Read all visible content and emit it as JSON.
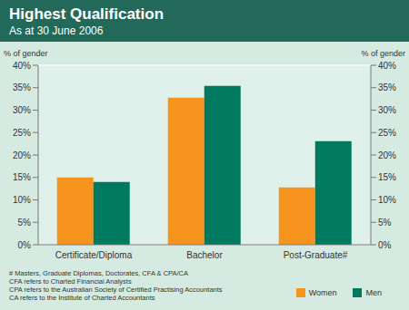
{
  "chart_data": {
    "type": "bar",
    "title": "Highest Qualification",
    "subtitle": "As at 30 June 2006",
    "y_label": "% of gender",
    "y2_label": "% of gender",
    "categories": [
      "Certificate/Diploma",
      "Bachelor",
      "Post-Graduate#"
    ],
    "series": [
      {
        "name": "Women",
        "color": "#f7941d",
        "values": [
          15,
          32.8,
          12.8
        ]
      },
      {
        "name": "Men",
        "color": "#007a5e",
        "values": [
          14,
          35.4,
          23.1
        ]
      }
    ],
    "ylim": [
      0,
      40
    ],
    "yticks": [
      {
        "value": 0,
        "label": "0%"
      },
      {
        "value": 5,
        "label": "5%"
      },
      {
        "value": 10,
        "label": "10%"
      },
      {
        "value": 15,
        "label": "15%"
      },
      {
        "value": 20,
        "label": "20%"
      },
      {
        "value": 25,
        "label": "25%"
      },
      {
        "value": 30,
        "label": "30%"
      },
      {
        "value": 35,
        "label": "35%"
      },
      {
        "value": 40,
        "label": "40%"
      }
    ],
    "y2lim": [
      0,
      40
    ],
    "y2ticks": [
      {
        "value": 0,
        "label": "0%"
      },
      {
        "value": 5,
        "label": "5%"
      },
      {
        "value": 10,
        "label": "10%"
      },
      {
        "value": 15,
        "label": "15%"
      },
      {
        "value": 20,
        "label": "20%"
      },
      {
        "value": 25,
        "label": "25%"
      },
      {
        "value": 30,
        "label": "30%"
      },
      {
        "value": 35,
        "label": "35%"
      },
      {
        "value": 40,
        "label": "40%"
      }
    ],
    "grid": true,
    "legend": "bottom right",
    "notes": [
      "# Masters, Graduate Diplomas, Doctorates, CFA & CPA/CA",
      "CFA refers to Charted Financial Analysts",
      "CPA refers to the Australian Society of Certified Practising Accountants",
      "CA refers to the Institute of Charted Accountants"
    ]
  }
}
